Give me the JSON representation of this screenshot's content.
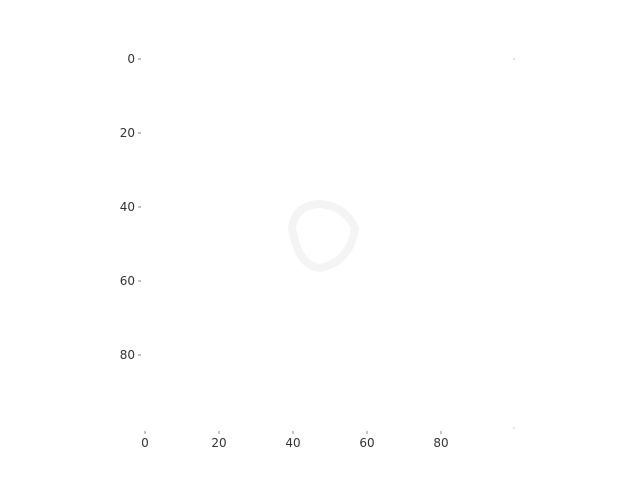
{
  "chart_data": {
    "type": "heatmap",
    "title": "",
    "xlabel": "",
    "ylabel": "",
    "x_ticks": [
      0,
      20,
      40,
      60,
      80
    ],
    "y_ticks": [
      0,
      20,
      40,
      60,
      80
    ],
    "xlim": [
      0,
      100
    ],
    "ylim": [
      0,
      100
    ],
    "y_inverted": true,
    "grid": false,
    "legend": "none",
    "colors": {
      "background": "#ffffff",
      "tick_label": "#333333",
      "tick_mark": "#888888"
    }
  }
}
